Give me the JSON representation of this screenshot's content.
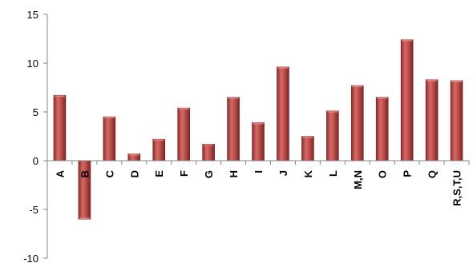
{
  "chart_data": {
    "type": "bar",
    "title": "",
    "xlabel": "",
    "ylabel": "",
    "ylim": [
      -10,
      15
    ],
    "yticks": [
      -10,
      -5,
      0,
      5,
      10,
      15
    ],
    "ytick_labels": [
      "-10",
      "-5",
      "0",
      "5",
      "10",
      "15"
    ],
    "grid": false,
    "legend": "none",
    "categories": [
      "A",
      "B",
      "C",
      "D",
      "E",
      "F",
      "G",
      "H",
      "I",
      "J",
      "K",
      "L",
      "M,N",
      "O",
      "P",
      "Q",
      "R,S,T,U"
    ],
    "values": [
      6.7,
      -6.0,
      4.5,
      0.7,
      2.2,
      5.4,
      1.7,
      6.5,
      3.9,
      9.6,
      2.5,
      5.1,
      7.7,
      6.5,
      12.4,
      8.3,
      8.2
    ],
    "colors": {
      "bar": "#c0504d",
      "bar_dark": "#8e2c2a",
      "bar_light": "#e8908e",
      "axis": "#868686"
    }
  }
}
